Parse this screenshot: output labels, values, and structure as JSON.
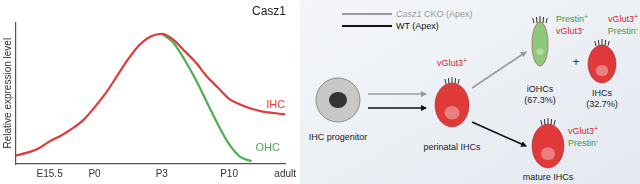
{
  "chart_data": {
    "type": "line",
    "title": "Casz1",
    "y_label": "Relative expression level",
    "categories": [
      null,
      null,
      null,
      "E15.5",
      null,
      null,
      null,
      "P0",
      null,
      null,
      null,
      null,
      null,
      "P3",
      null,
      null,
      null,
      null,
      null,
      "P10",
      null,
      null,
      null,
      null,
      "adult"
    ],
    "series": [
      {
        "name": "IHC",
        "color": "#e03a37",
        "values": [
          6,
          8,
          11,
          16,
          20,
          25,
          31,
          40,
          50,
          62,
          74,
          84,
          90,
          92,
          88,
          80,
          72,
          62,
          54,
          46,
          42,
          39,
          37,
          36,
          35
        ]
      },
      {
        "name": "OHC",
        "color": "#4cae4c",
        "values": [
          null,
          null,
          null,
          null,
          null,
          null,
          null,
          null,
          null,
          null,
          null,
          null,
          null,
          92,
          86,
          74,
          60,
          44,
          28,
          14,
          5,
          2,
          null,
          null,
          null
        ]
      }
    ],
    "ylim": [
      0,
      100
    ],
    "grid": false,
    "tick_labels": "x"
  },
  "diagram": {
    "legend": [
      {
        "italic": "Casz1",
        "label": "CKO (Apex)",
        "color": "#9a9a9a"
      },
      {
        "label": "WT (Apex)",
        "color": "#111111"
      }
    ],
    "nodes": [
      {
        "label": "IHC progenitor",
        "color": "#c8c8c8"
      },
      {
        "label": "perinatal IHCs",
        "color": "#e0393a",
        "markers": [
          {
            "gene": "vGlut3",
            "sign": "+",
            "color": "#d9262b"
          }
        ]
      },
      {
        "label": "iOHCs",
        "percent_label": "(67.3%)",
        "color": "#8cc97a",
        "markers": [
          {
            "gene": "Prestin",
            "sign": "+",
            "color": "#3f9b3f"
          },
          {
            "gene": "vGlut3",
            "sign": "-",
            "color": "#d9262b"
          }
        ]
      },
      {
        "label": "IHCs",
        "percent_label": "(32.7%)",
        "color": "#e0393a",
        "markers": [
          {
            "gene": "vGlut3",
            "sign": "+",
            "color": "#d9262b"
          },
          {
            "gene": "Prestin",
            "sign": "-",
            "color": "#3f9b3f"
          }
        ]
      },
      {
        "label": "mature IHCs",
        "color": "#e0393a",
        "markers": [
          {
            "gene": "vGlut3",
            "sign": "+",
            "color": "#d9262b"
          },
          {
            "gene": "Prestin",
            "sign": "-",
            "color": "#3f9b3f"
          }
        ]
      }
    ],
    "joiner": "+",
    "edges": [
      {
        "from": 0,
        "to": 1,
        "legend": 0
      },
      {
        "from": 0,
        "to": 1,
        "legend": 1
      },
      {
        "from": 1,
        "to": 2,
        "legend": 0
      },
      {
        "from": 1,
        "to": 4,
        "legend": 1
      }
    ]
  }
}
